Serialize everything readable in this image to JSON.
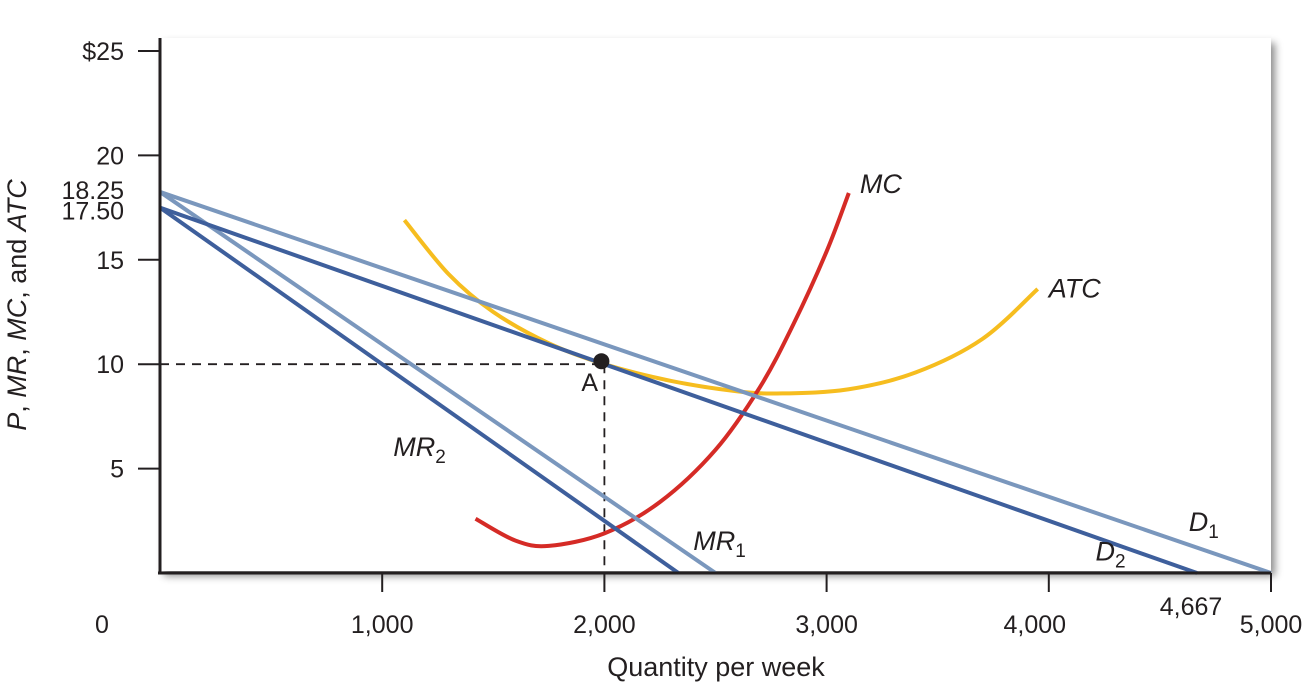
{
  "chart_data": {
    "type": "line",
    "title": "",
    "xlabel": "Quantity per week",
    "ylabel_parts": [
      {
        "text": "P",
        "italic": true
      },
      {
        "text": ", ",
        "italic": false
      },
      {
        "text": "MR",
        "italic": true
      },
      {
        "text": ", ",
        "italic": false
      },
      {
        "text": "MC",
        "italic": true
      },
      {
        "text": ", and ",
        "italic": false
      },
      {
        "text": "ATC",
        "italic": true
      }
    ],
    "origin_label": "0",
    "xlim": [
      0,
      5000
    ],
    "ylim": [
      0,
      25
    ],
    "x_ticks": [
      {
        "value": 1000,
        "label": "1,000"
      },
      {
        "value": 2000,
        "label": "2,000"
      },
      {
        "value": 3000,
        "label": "3,000"
      },
      {
        "value": 4000,
        "label": "4,000"
      },
      {
        "value": 4667,
        "label": "4,667"
      },
      {
        "value": 5000,
        "label": "5,000"
      }
    ],
    "y_ticks": [
      {
        "value": 25,
        "label": "$25"
      },
      {
        "value": 20,
        "label": "20"
      },
      {
        "value": 18.25,
        "label": "18.25"
      },
      {
        "value": 17.5,
        "label": "17.50"
      },
      {
        "value": 15,
        "label": "15"
      },
      {
        "value": 10,
        "label": "10"
      },
      {
        "value": 5,
        "label": "5"
      }
    ],
    "y_tick_marks": [
      25,
      20,
      15,
      10,
      5
    ],
    "grid": false,
    "series": [
      {
        "name": "D1",
        "label_main": "D",
        "label_sub": "1",
        "color": "#7a97bd",
        "points": [
          [
            0,
            18.25
          ],
          [
            5000,
            0
          ]
        ]
      },
      {
        "name": "MR1",
        "label_main": "MR",
        "label_sub": "1",
        "color": "#7a97bd",
        "points": [
          [
            0,
            18.25
          ],
          [
            2500,
            0
          ]
        ]
      },
      {
        "name": "D2",
        "label_main": "D",
        "label_sub": "2",
        "color": "#3e5f9c",
        "points": [
          [
            0,
            17.5
          ],
          [
            4667,
            0
          ]
        ]
      },
      {
        "name": "MR2",
        "label_main": "MR",
        "label_sub": "2",
        "color": "#3e5f9c",
        "points": [
          [
            0,
            17.5
          ],
          [
            2333,
            0
          ]
        ]
      },
      {
        "name": "MC",
        "label_main": "MC",
        "label_sub": "",
        "color": "#d52b26",
        "points": [
          [
            1420,
            2.6
          ],
          [
            1600,
            1.55
          ],
          [
            1750,
            1.3
          ],
          [
            2000,
            1.9
          ],
          [
            2250,
            3.4
          ],
          [
            2500,
            5.9
          ],
          [
            2700,
            8.9
          ],
          [
            2850,
            11.9
          ],
          [
            3000,
            15.4
          ],
          [
            3100,
            18.2
          ]
        ]
      },
      {
        "name": "ATC",
        "label_main": "ATC",
        "label_sub": "",
        "color": "#f6bd1f",
        "points": [
          [
            1100,
            16.9
          ],
          [
            1300,
            14.3
          ],
          [
            1500,
            12.5
          ],
          [
            1750,
            11.0
          ],
          [
            2000,
            10.0
          ],
          [
            2300,
            9.2
          ],
          [
            2600,
            8.7
          ],
          [
            2800,
            8.6
          ],
          [
            3100,
            8.8
          ],
          [
            3400,
            9.6
          ],
          [
            3700,
            11.2
          ],
          [
            3950,
            13.6
          ]
        ]
      }
    ],
    "reference_lines": {
      "x": 2000,
      "y": 10
    },
    "point": {
      "label": "A",
      "x": 2000,
      "y": 10
    }
  }
}
